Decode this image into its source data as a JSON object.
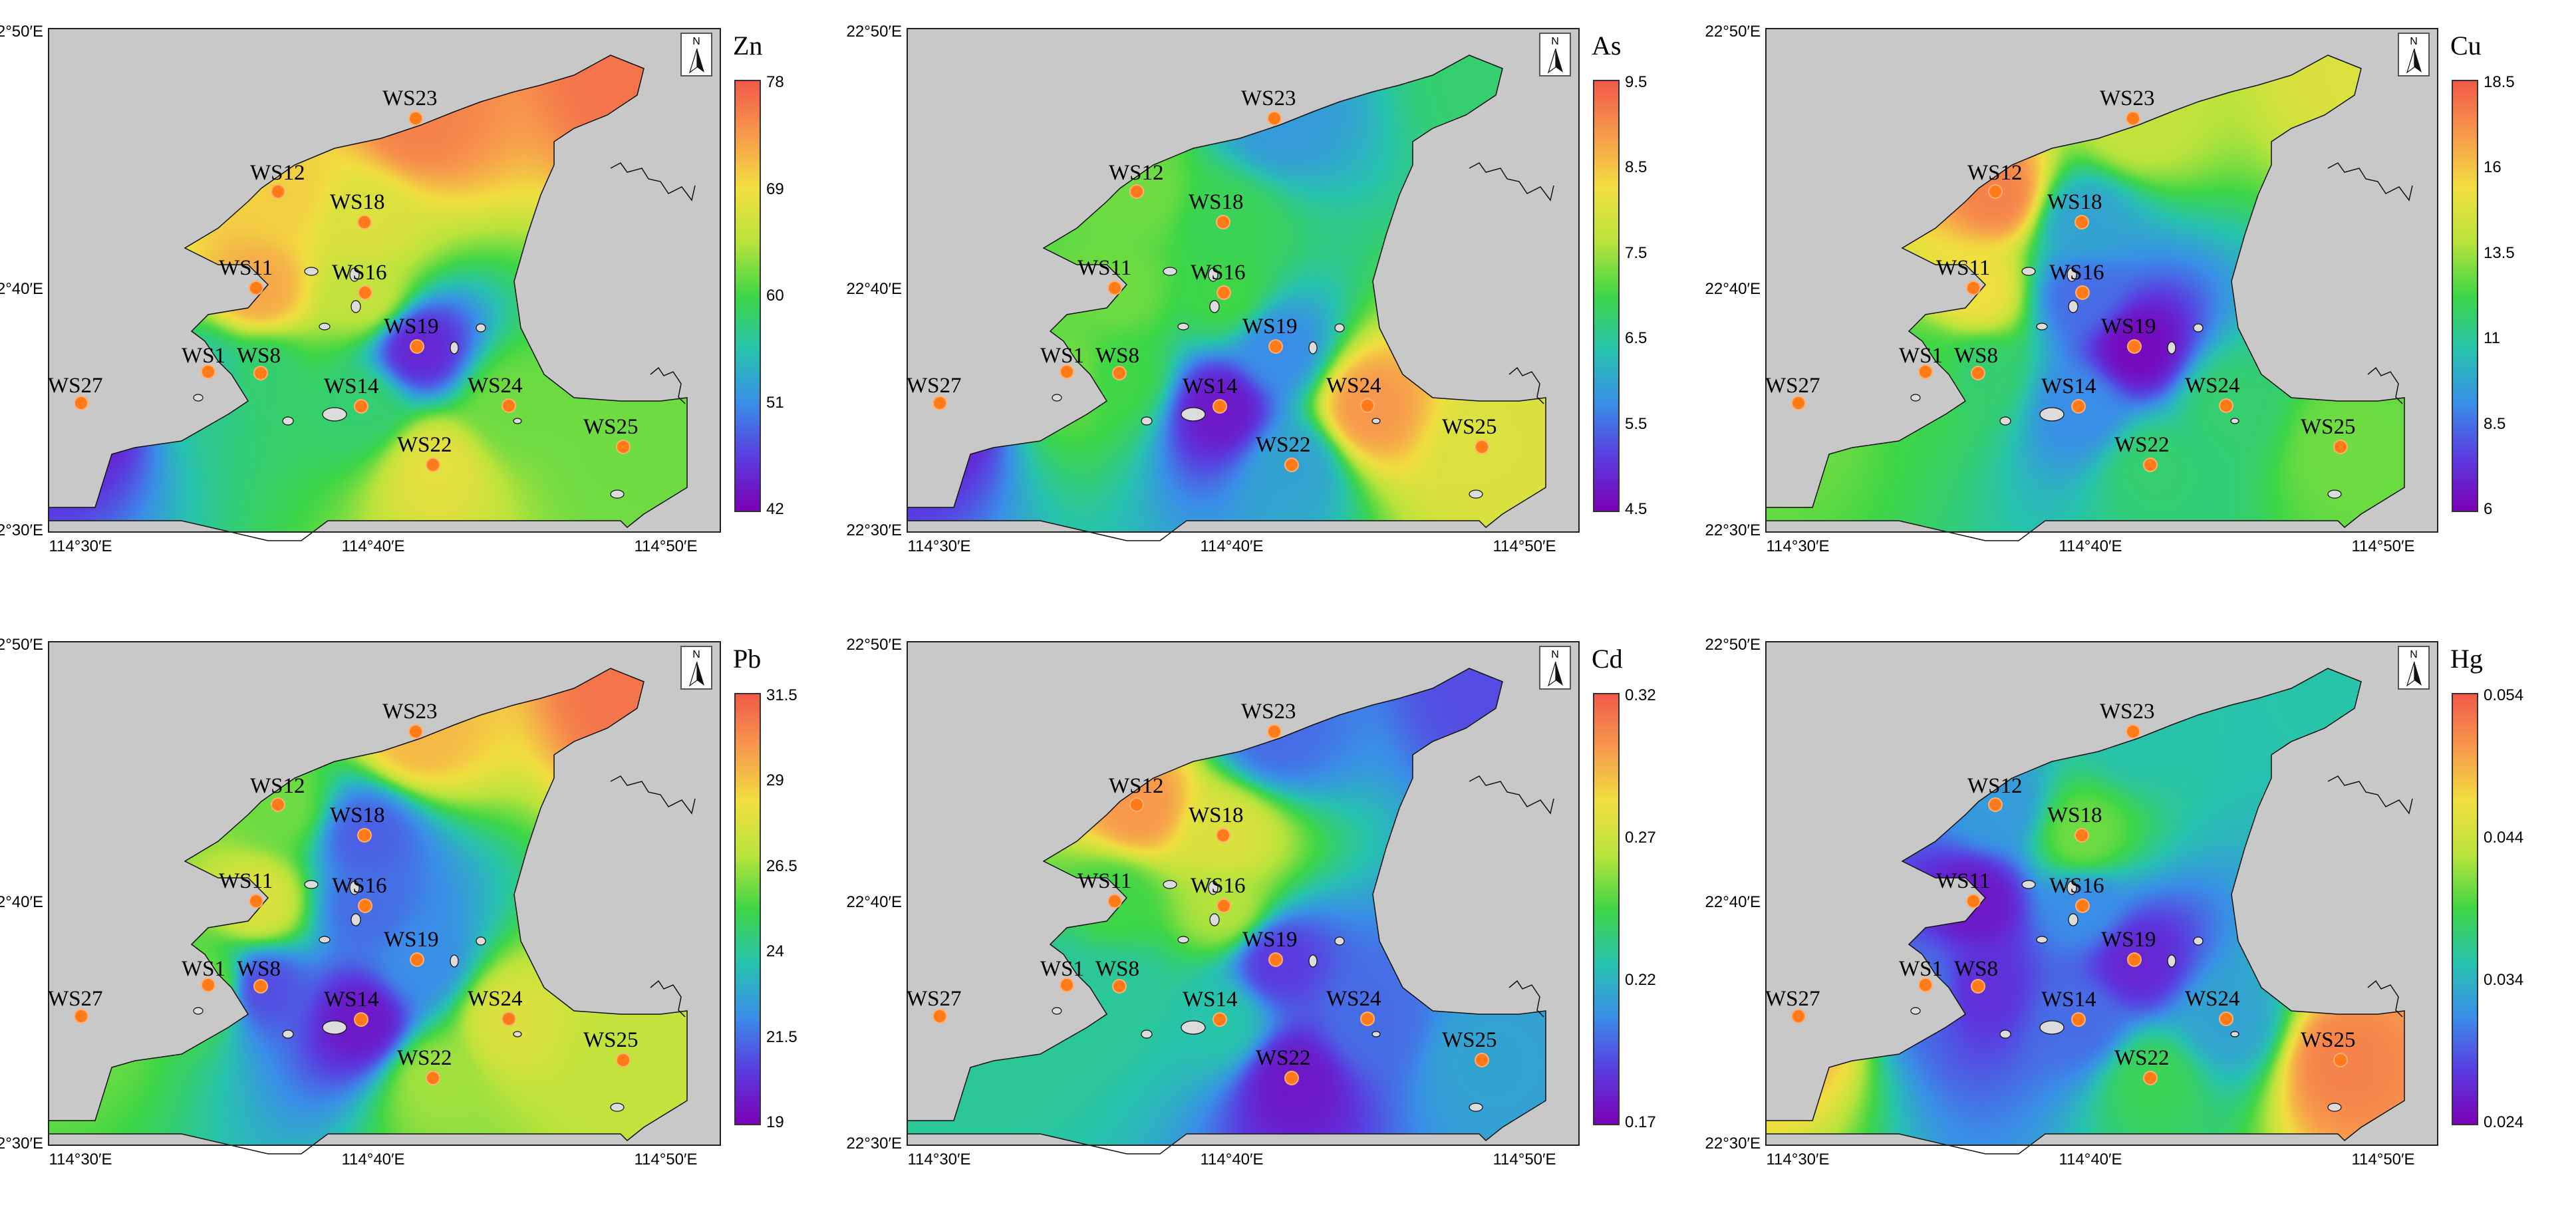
{
  "figure": {
    "lat_labels": [
      "22°50′E",
      "22°40′E",
      "22°30′E"
    ],
    "lon_labels": [
      "114°30′E",
      "114°40′E",
      "114°50′E"
    ],
    "north_label": "N",
    "colors": {
      "land": "#c8c8c8",
      "site": "#ff7a18",
      "coast": "#111111",
      "ramp": [
        "#7b00b6",
        "#5a3ce0",
        "#3a8ee8",
        "#27c3ae",
        "#3ed646",
        "#b9e33c",
        "#f1df40",
        "#f79a4c",
        "#f25a4a"
      ]
    }
  },
  "sites": [
    "WS1",
    "WS8",
    "WS11",
    "WS12",
    "WS14",
    "WS16",
    "WS18",
    "WS19",
    "WS22",
    "WS23",
    "WS24",
    "WS25",
    "WS27"
  ],
  "panels": [
    {
      "element": "Zn",
      "ticks": [
        "78",
        "69",
        "60",
        "51",
        "42"
      ]
    },
    {
      "element": "As",
      "ticks": [
        "9.5",
        "8.5",
        "7.5",
        "6.5",
        "5.5",
        "4.5"
      ]
    },
    {
      "element": "Cu",
      "ticks": [
        "18.5",
        "16",
        "13.5",
        "11",
        "8.5",
        "6"
      ]
    },
    {
      "element": "Pb",
      "ticks": [
        "31.5",
        "29",
        "26.5",
        "24",
        "21.5",
        "19"
      ]
    },
    {
      "element": "Cd",
      "ticks": [
        "0.32",
        "0.27",
        "0.22",
        "0.17"
      ]
    },
    {
      "element": "Hg",
      "ticks": [
        "0.054",
        "0.044",
        "0.034",
        "0.024"
      ]
    }
  ]
}
